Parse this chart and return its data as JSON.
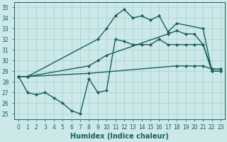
{
  "bg_color": "#cce8e8",
  "grid_color": "#a8d0d0",
  "line_color": "#1a5f5f",
  "marker": "D",
  "markersize": 2.2,
  "linewidth": 1.0,
  "xlabel": "Humidex (Indice chaleur)",
  "xlabel_fontsize": 7.0,
  "tick_fontsize": 5.5,
  "xlim": [
    -0.5,
    23.5
  ],
  "ylim": [
    24.5,
    35.5
  ],
  "xticks": [
    0,
    1,
    2,
    3,
    4,
    5,
    6,
    7,
    8,
    9,
    10,
    11,
    12,
    13,
    14,
    15,
    16,
    17,
    18,
    19,
    20,
    21,
    22,
    23
  ],
  "yticks": [
    25,
    26,
    27,
    28,
    29,
    30,
    31,
    32,
    33,
    34,
    35
  ],
  "line1_x": [
    0,
    1,
    9,
    10,
    11,
    12,
    13,
    14,
    15,
    16,
    17,
    18,
    21,
    22,
    23
  ],
  "line1_y": [
    28.5,
    28.5,
    32.0,
    33.0,
    34.2,
    34.8,
    34.0,
    34.2,
    33.8,
    34.2,
    32.7,
    33.5,
    33.0,
    29.0,
    29.0
  ],
  "line2_x": [
    0,
    1,
    2,
    3,
    4,
    5,
    6,
    7,
    8,
    9,
    10,
    11,
    12,
    13,
    14,
    15,
    16,
    17,
    18,
    19,
    20,
    21,
    22,
    23
  ],
  "line2_y": [
    28.5,
    27.0,
    26.8,
    27.0,
    26.5,
    26.0,
    25.3,
    25.0,
    28.3,
    27.0,
    27.2,
    32.0,
    31.8,
    31.5,
    31.5,
    31.5,
    32.0,
    31.5,
    31.5,
    31.5,
    31.5,
    31.5,
    29.2,
    29.2
  ],
  "line3_x": [
    0,
    1,
    8,
    9,
    10,
    17,
    18,
    19,
    20,
    21,
    22,
    23
  ],
  "line3_y": [
    28.5,
    28.5,
    29.5,
    30.0,
    30.5,
    32.5,
    32.8,
    32.5,
    32.5,
    31.5,
    29.0,
    29.0
  ],
  "line4_x": [
    0,
    1,
    8,
    18,
    19,
    20,
    21,
    22,
    23
  ],
  "line4_y": [
    28.5,
    28.5,
    28.8,
    29.5,
    29.5,
    29.5,
    29.5,
    29.2,
    29.2
  ]
}
